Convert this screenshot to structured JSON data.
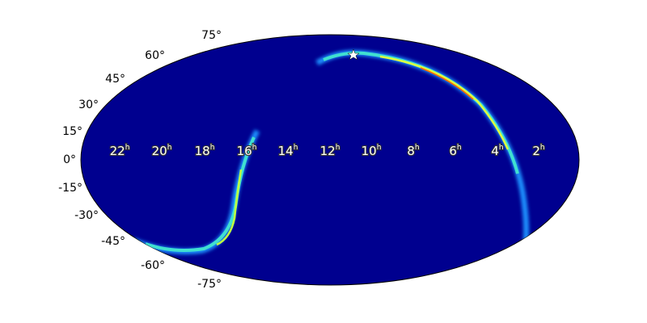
{
  "map": {
    "dec_labels": [
      "75°",
      "60°",
      "45°",
      "30°",
      "15°",
      "0°",
      "-15°",
      "-30°",
      "-45°",
      "-60°",
      "-75°"
    ],
    "ra_labels": [
      [
        "22",
        "h"
      ],
      [
        "20",
        "h"
      ],
      [
        "18",
        "h"
      ],
      [
        "16",
        "h"
      ],
      [
        "14",
        "h"
      ],
      [
        "12",
        "h"
      ],
      [
        "10",
        "h"
      ],
      [
        "8",
        "h"
      ],
      [
        "6",
        "h"
      ],
      [
        "4",
        "h"
      ],
      [
        "2",
        "h"
      ]
    ]
  }
}
